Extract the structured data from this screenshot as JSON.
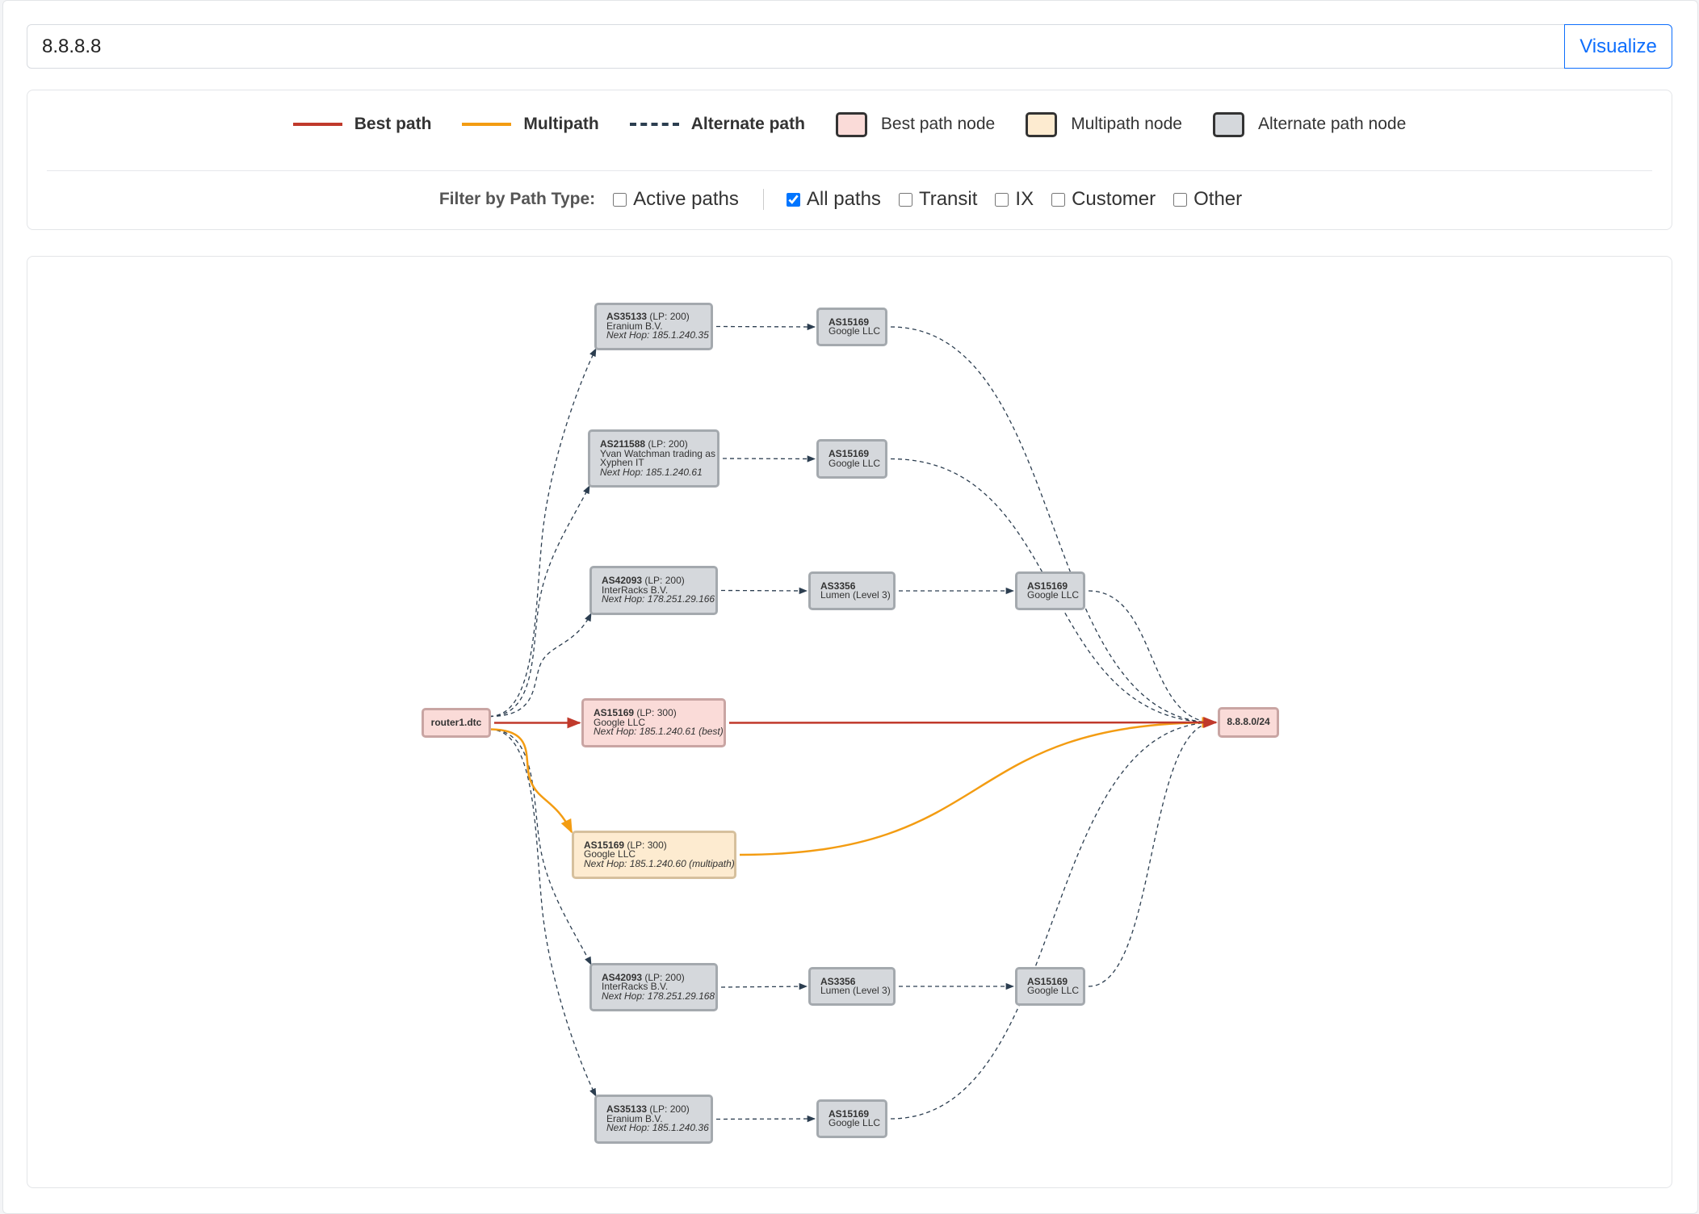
{
  "search": {
    "value": "8.8.8.8",
    "button_label": "Visualize"
  },
  "legend": {
    "lines": [
      {
        "label": "Best path",
        "color": "#c0392b",
        "style": "solid"
      },
      {
        "label": "Multipath",
        "color": "#f39c12",
        "style": "solid"
      },
      {
        "label": "Alternate path",
        "color": "#2c3e50",
        "style": "dashed"
      }
    ],
    "boxes": [
      {
        "label": "Best path node",
        "fill": "#fadbd8"
      },
      {
        "label": "Multipath node",
        "fill": "#fdebd0"
      },
      {
        "label": "Alternate path node",
        "fill": "#d5d8dc"
      }
    ]
  },
  "filter": {
    "label": "Filter by Path Type:",
    "options": [
      {
        "label": "Active paths",
        "checked": false
      },
      {
        "label": "All paths",
        "checked": true
      },
      {
        "label": "Transit",
        "checked": false
      },
      {
        "label": "IX",
        "checked": false
      },
      {
        "label": "Customer",
        "checked": false
      },
      {
        "label": "Other",
        "checked": false
      }
    ]
  },
  "graph": {
    "nodes": [
      {
        "id": "router",
        "label": "router1.dtc",
        "type": "best"
      },
      {
        "id": "a1",
        "as": "AS35133",
        "lp": " (LP: 200)",
        "name": "Eranium B.V.",
        "hop": "Next Hop: 185.1.240.35",
        "type": "alt"
      },
      {
        "id": "a1g",
        "as": "AS15169",
        "name": "Google LLC",
        "type": "alt"
      },
      {
        "id": "a2",
        "as": "AS211588",
        "lp": " (LP: 200)",
        "name": "Yvan Watchman trading as",
        "name2": "Xyphen IT",
        "hop": "Next Hop: 185.1.240.61",
        "type": "alt"
      },
      {
        "id": "a2g",
        "as": "AS15169",
        "name": "Google LLC",
        "type": "alt"
      },
      {
        "id": "a3",
        "as": "AS42093",
        "lp": " (LP: 200)",
        "name": "InterRacks B.V.",
        "hop": "Next Hop: 178.251.29.166",
        "type": "alt"
      },
      {
        "id": "a3l",
        "as": "AS3356",
        "name": "Lumen (Level 3)",
        "type": "alt"
      },
      {
        "id": "a3g",
        "as": "AS15169",
        "name": "Google LLC",
        "type": "alt"
      },
      {
        "id": "best",
        "as": "AS15169",
        "lp": " (LP: 300)",
        "name": "Google LLC",
        "hop": "Next Hop: 185.1.240.61 (best)",
        "type": "best"
      },
      {
        "id": "dest",
        "label": "8.8.8.0/24",
        "type": "best"
      },
      {
        "id": "multi",
        "as": "AS15169",
        "lp": " (LP: 300)",
        "name": "Google LLC",
        "hop": "Next Hop: 185.1.240.60 (multipath)",
        "type": "multi"
      },
      {
        "id": "b3",
        "as": "AS42093",
        "lp": " (LP: 200)",
        "name": "InterRacks B.V.",
        "hop": "Next Hop: 178.251.29.168",
        "type": "alt"
      },
      {
        "id": "b3l",
        "as": "AS3356",
        "name": "Lumen (Level 3)",
        "type": "alt"
      },
      {
        "id": "b3g",
        "as": "AS15169",
        "name": "Google LLC",
        "type": "alt"
      },
      {
        "id": "b1",
        "as": "AS35133",
        "lp": " (LP: 200)",
        "name": "Eranium B.V.",
        "hop": "Next Hop: 185.1.240.36",
        "type": "alt"
      },
      {
        "id": "b1g",
        "as": "AS15169",
        "name": "Google LLC",
        "type": "alt"
      }
    ],
    "edges": [
      {
        "from": "router",
        "to": "a1",
        "type": "alt"
      },
      {
        "from": "router",
        "to": "a2",
        "type": "alt"
      },
      {
        "from": "router",
        "to": "a3",
        "type": "alt"
      },
      {
        "from": "router",
        "to": "b3",
        "type": "alt"
      },
      {
        "from": "router",
        "to": "b1",
        "type": "alt"
      },
      {
        "from": "a1",
        "to": "a1g",
        "type": "alt"
      },
      {
        "from": "a1g",
        "to": "dest",
        "type": "alt"
      },
      {
        "from": "a2",
        "to": "a2g",
        "type": "alt"
      },
      {
        "from": "a2g",
        "to": "dest",
        "type": "alt"
      },
      {
        "from": "a3",
        "to": "a3l",
        "type": "alt"
      },
      {
        "from": "a3l",
        "to": "a3g",
        "type": "alt"
      },
      {
        "from": "a3g",
        "to": "dest",
        "type": "alt"
      },
      {
        "from": "b3",
        "to": "b3l",
        "type": "alt"
      },
      {
        "from": "b3l",
        "to": "b3g",
        "type": "alt"
      },
      {
        "from": "b3g",
        "to": "dest",
        "type": "alt"
      },
      {
        "from": "b1",
        "to": "b1g",
        "type": "alt"
      },
      {
        "from": "b1g",
        "to": "dest",
        "type": "alt"
      },
      {
        "from": "router",
        "to": "multi",
        "type": "multi"
      },
      {
        "from": "multi",
        "to": "dest",
        "type": "multi"
      },
      {
        "from": "router",
        "to": "best",
        "type": "best"
      },
      {
        "from": "best",
        "to": "dest",
        "type": "best"
      }
    ]
  }
}
